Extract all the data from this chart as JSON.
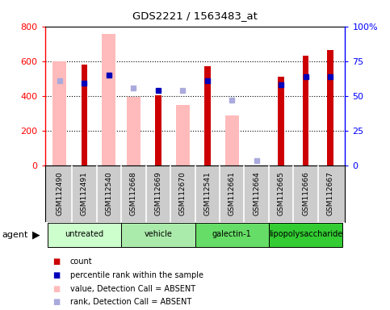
{
  "title": "GDS2221 / 1563483_at",
  "samples": [
    "GSM112490",
    "GSM112491",
    "GSM112540",
    "GSM112668",
    "GSM112669",
    "GSM112670",
    "GSM112541",
    "GSM112661",
    "GSM112664",
    "GSM112665",
    "GSM112666",
    "GSM112667"
  ],
  "groups": [
    {
      "label": "untreated",
      "color": "#ccffcc",
      "indices": [
        0,
        1,
        2
      ]
    },
    {
      "label": "vehicle",
      "color": "#aaeaaa",
      "indices": [
        3,
        4,
        5
      ]
    },
    {
      "label": "galectin-1",
      "color": "#66dd66",
      "indices": [
        6,
        7,
        8
      ]
    },
    {
      "label": "lipopolysaccharide",
      "color": "#33cc33",
      "indices": [
        9,
        10,
        11
      ]
    }
  ],
  "red_bars": [
    null,
    580,
    null,
    null,
    405,
    null,
    570,
    null,
    null,
    510,
    630,
    665
  ],
  "pink_bars": [
    600,
    null,
    755,
    395,
    null,
    350,
    null,
    290,
    null,
    null,
    null,
    null
  ],
  "blue_squares": [
    null,
    59,
    65,
    null,
    54,
    null,
    61,
    null,
    null,
    58,
    64,
    64
  ],
  "light_blue_sq": [
    61,
    null,
    null,
    56,
    null,
    54,
    null,
    47,
    4,
    null,
    null,
    null
  ],
  "ylim_left": [
    0,
    800
  ],
  "ylim_right": [
    0,
    100
  ],
  "yticks_left": [
    0,
    200,
    400,
    600,
    800
  ],
  "yticks_right": [
    0,
    25,
    50,
    75,
    100
  ],
  "yticklabels_left": [
    "0",
    "200",
    "400",
    "600",
    "800"
  ],
  "yticklabels_right": [
    "0",
    "25",
    "50",
    "75",
    "100%"
  ]
}
